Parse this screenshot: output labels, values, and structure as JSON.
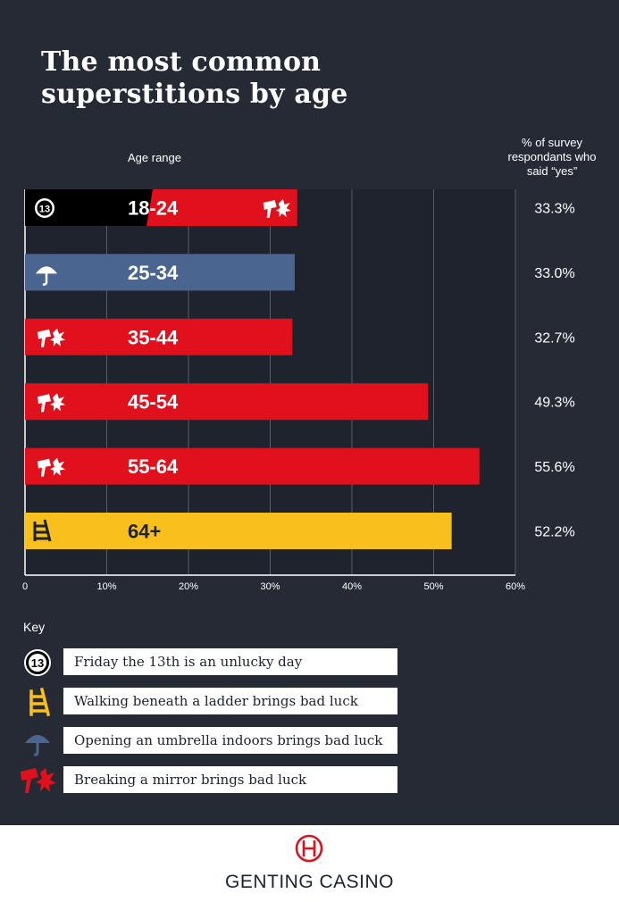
{
  "title_line1": "The most common",
  "title_line2": "superstitions by age",
  "age_range_label": "Age range",
  "pct_label_line1": "% of survey",
  "pct_label_line2": "respondants who",
  "pct_label_line3": "said “yes”",
  "colors": {
    "background": "#252a35",
    "friday13": "#000000",
    "mirror": "#e0101c",
    "umbrella": "#4a6590",
    "ladder": "#f9bf1d"
  },
  "chart_data": {
    "type": "bar",
    "orientation": "horizontal",
    "categories": [
      "18-24",
      "25-34",
      "35-44",
      "45-54",
      "55-64",
      "64+"
    ],
    "values": [
      33.3,
      33.0,
      32.7,
      49.3,
      55.6,
      52.2
    ],
    "value_labels": [
      "33.3%",
      "33.0%",
      "32.7%",
      "49.3%",
      "55.6%",
      "52.2%"
    ],
    "top_superstition": [
      "friday13-mirror",
      "umbrella",
      "mirror",
      "mirror",
      "mirror",
      "ladder"
    ],
    "xlim": [
      0,
      60
    ],
    "x_ticks": [
      0,
      10,
      20,
      30,
      40,
      50,
      60
    ],
    "x_tick_labels": [
      "0",
      "10%",
      "20%",
      "30%",
      "40%",
      "50%",
      "60%"
    ],
    "grid": true
  },
  "key": {
    "title": "Key",
    "items": [
      {
        "icon": "friday13-icon",
        "label": "Friday the 13th is an unlucky day"
      },
      {
        "icon": "ladder-icon",
        "label": "Walking beneath a ladder brings bad luck"
      },
      {
        "icon": "umbrella-icon",
        "label": "Opening an umbrella indoors brings bad luck"
      },
      {
        "icon": "broken-mirror-icon",
        "label": "Breaking a mirror brings bad luck"
      }
    ]
  },
  "footer": {
    "brand": "GENTING CASINO",
    "logo_icon": "genting-logo-icon"
  }
}
